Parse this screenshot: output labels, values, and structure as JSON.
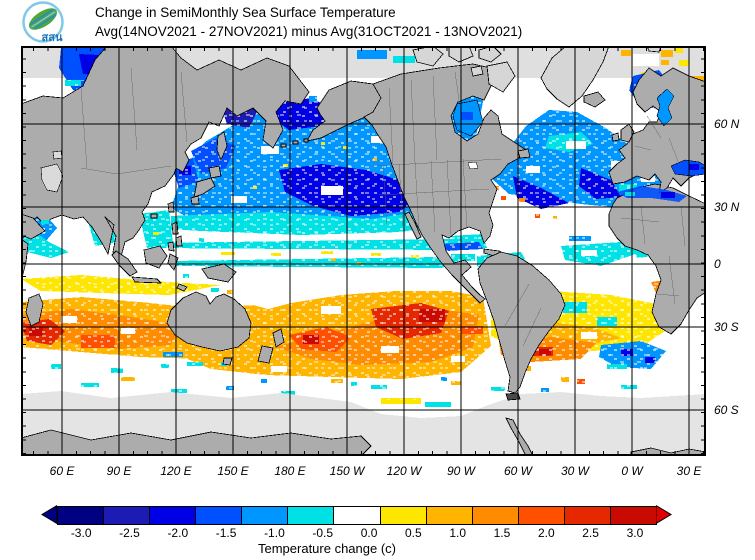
{
  "header": {
    "title_line1": "Change in SemiMonthly Sea Surface Temperature",
    "title_line2": "Avg(14NOV2021 - 27NOV2021) minus Avg(31OCT2021 - 13NOV2021)",
    "logo_text": "สสน"
  },
  "map": {
    "lat_labels": [
      "60 N",
      "30 N",
      "0",
      "30 S",
      "60 S"
    ],
    "lon_labels": [
      "60 E",
      "90 E",
      "120 E",
      "150 E",
      "180 E",
      "150 W",
      "120 W",
      "90 W",
      "60 W",
      "30 W",
      "0 W",
      "30 E"
    ]
  },
  "colorbar": {
    "caption": "Temperature change  (c)",
    "tick_labels": [
      "-3.0",
      "-2.5",
      "-2.0",
      "-1.5",
      "-1.0",
      "-0.5",
      "0.0",
      "0.5",
      "1.0",
      "1.5",
      "2.0",
      "2.5",
      "3.0"
    ],
    "cell_colors": [
      "#000082",
      "#1C1CB4",
      "#0000E6",
      "#0050FF",
      "#0096FF",
      "#00E1E6",
      "#FFFFFF",
      "#FFE600",
      "#FFB400",
      "#FF8C00",
      "#FF5000",
      "#E62800",
      "#C80A00"
    ],
    "left_arrow_color": "#000082",
    "right_arrow_color": "#E10000"
  },
  "chart_data": {
    "type": "heatmap",
    "title": "Change in SemiMonthly Sea Surface Temperature",
    "subtitle": "Avg(14NOV2021 - 27NOV2021) minus Avg(31OCT2021 - 13NOV2021)",
    "projection": "Pacific-centered world map (approx. 40E eastward to 40E), latitude approx 75N to 73S",
    "x_tick_labels": [
      "60 E",
      "90 E",
      "120 E",
      "150 E",
      "180 E",
      "150 W",
      "120 W",
      "90 W",
      "60 W",
      "30 W",
      "0 W",
      "30 E"
    ],
    "y_tick_labels": [
      "60 N",
      "30 N",
      "0",
      "30 S",
      "60 S"
    ],
    "grid": true,
    "legend_position": "bottom",
    "colorbar": {
      "label": "Temperature change (c)",
      "ticks": [
        -3.0,
        -2.5,
        -2.0,
        -1.5,
        -1.0,
        -0.5,
        0.0,
        0.5,
        1.0,
        1.5,
        2.0,
        2.5,
        3.0
      ],
      "colors": [
        "#000082",
        "#1C1CB4",
        "#0000E6",
        "#0050FF",
        "#0096FF",
        "#00E1E6",
        "#FFFFFF",
        "#FFE600",
        "#FFB400",
        "#FF8C00",
        "#FF5000",
        "#E62800",
        "#C80A00"
      ],
      "open_ended_below": -3.0,
      "open_ended_above": 3.0
    },
    "region_estimates_c": [
      {
        "region": "North Pacific 30N-60N",
        "approx_change": -1.5
      },
      {
        "region": "Sea of Okhotsk / Bering Sea",
        "approx_change": -2.5
      },
      {
        "region": "Kara/Barents seas (Arctic, ~60-90E)",
        "approx_change": -1.5
      },
      {
        "region": "Norwegian/Barents Sea scattered patches",
        "approx_change": 1.0
      },
      {
        "region": "North Atlantic 30N-60N",
        "approx_change": -1.5
      },
      {
        "region": "Mediterranean and Black Sea",
        "approx_change": -1.5
      },
      {
        "region": "Equatorial Pacific",
        "approx_change": -0.4
      },
      {
        "region": "Caribbean / tropical Atlantic",
        "approx_change": -0.5
      },
      {
        "region": "Tropical Indian Ocean 0-20S",
        "approx_change": 0.7
      },
      {
        "region": "SW Indian Ocean ~30-40S",
        "approx_change": 2.5
      },
      {
        "region": "South Pacific 25S-45S broad band",
        "approx_change": 1.5
      },
      {
        "region": "South Pacific core east of New Zealand / ~150W 35S",
        "approx_change": 3.0
      },
      {
        "region": "SW Atlantic ~40S east of Argentina",
        "approx_change": 2.5
      },
      {
        "region": "SE Atlantic SW of South Africa",
        "approx_change": -1.5
      },
      {
        "region": "Southern Ocean south of ~58S",
        "approx_change": "no data (gray)"
      }
    ]
  }
}
